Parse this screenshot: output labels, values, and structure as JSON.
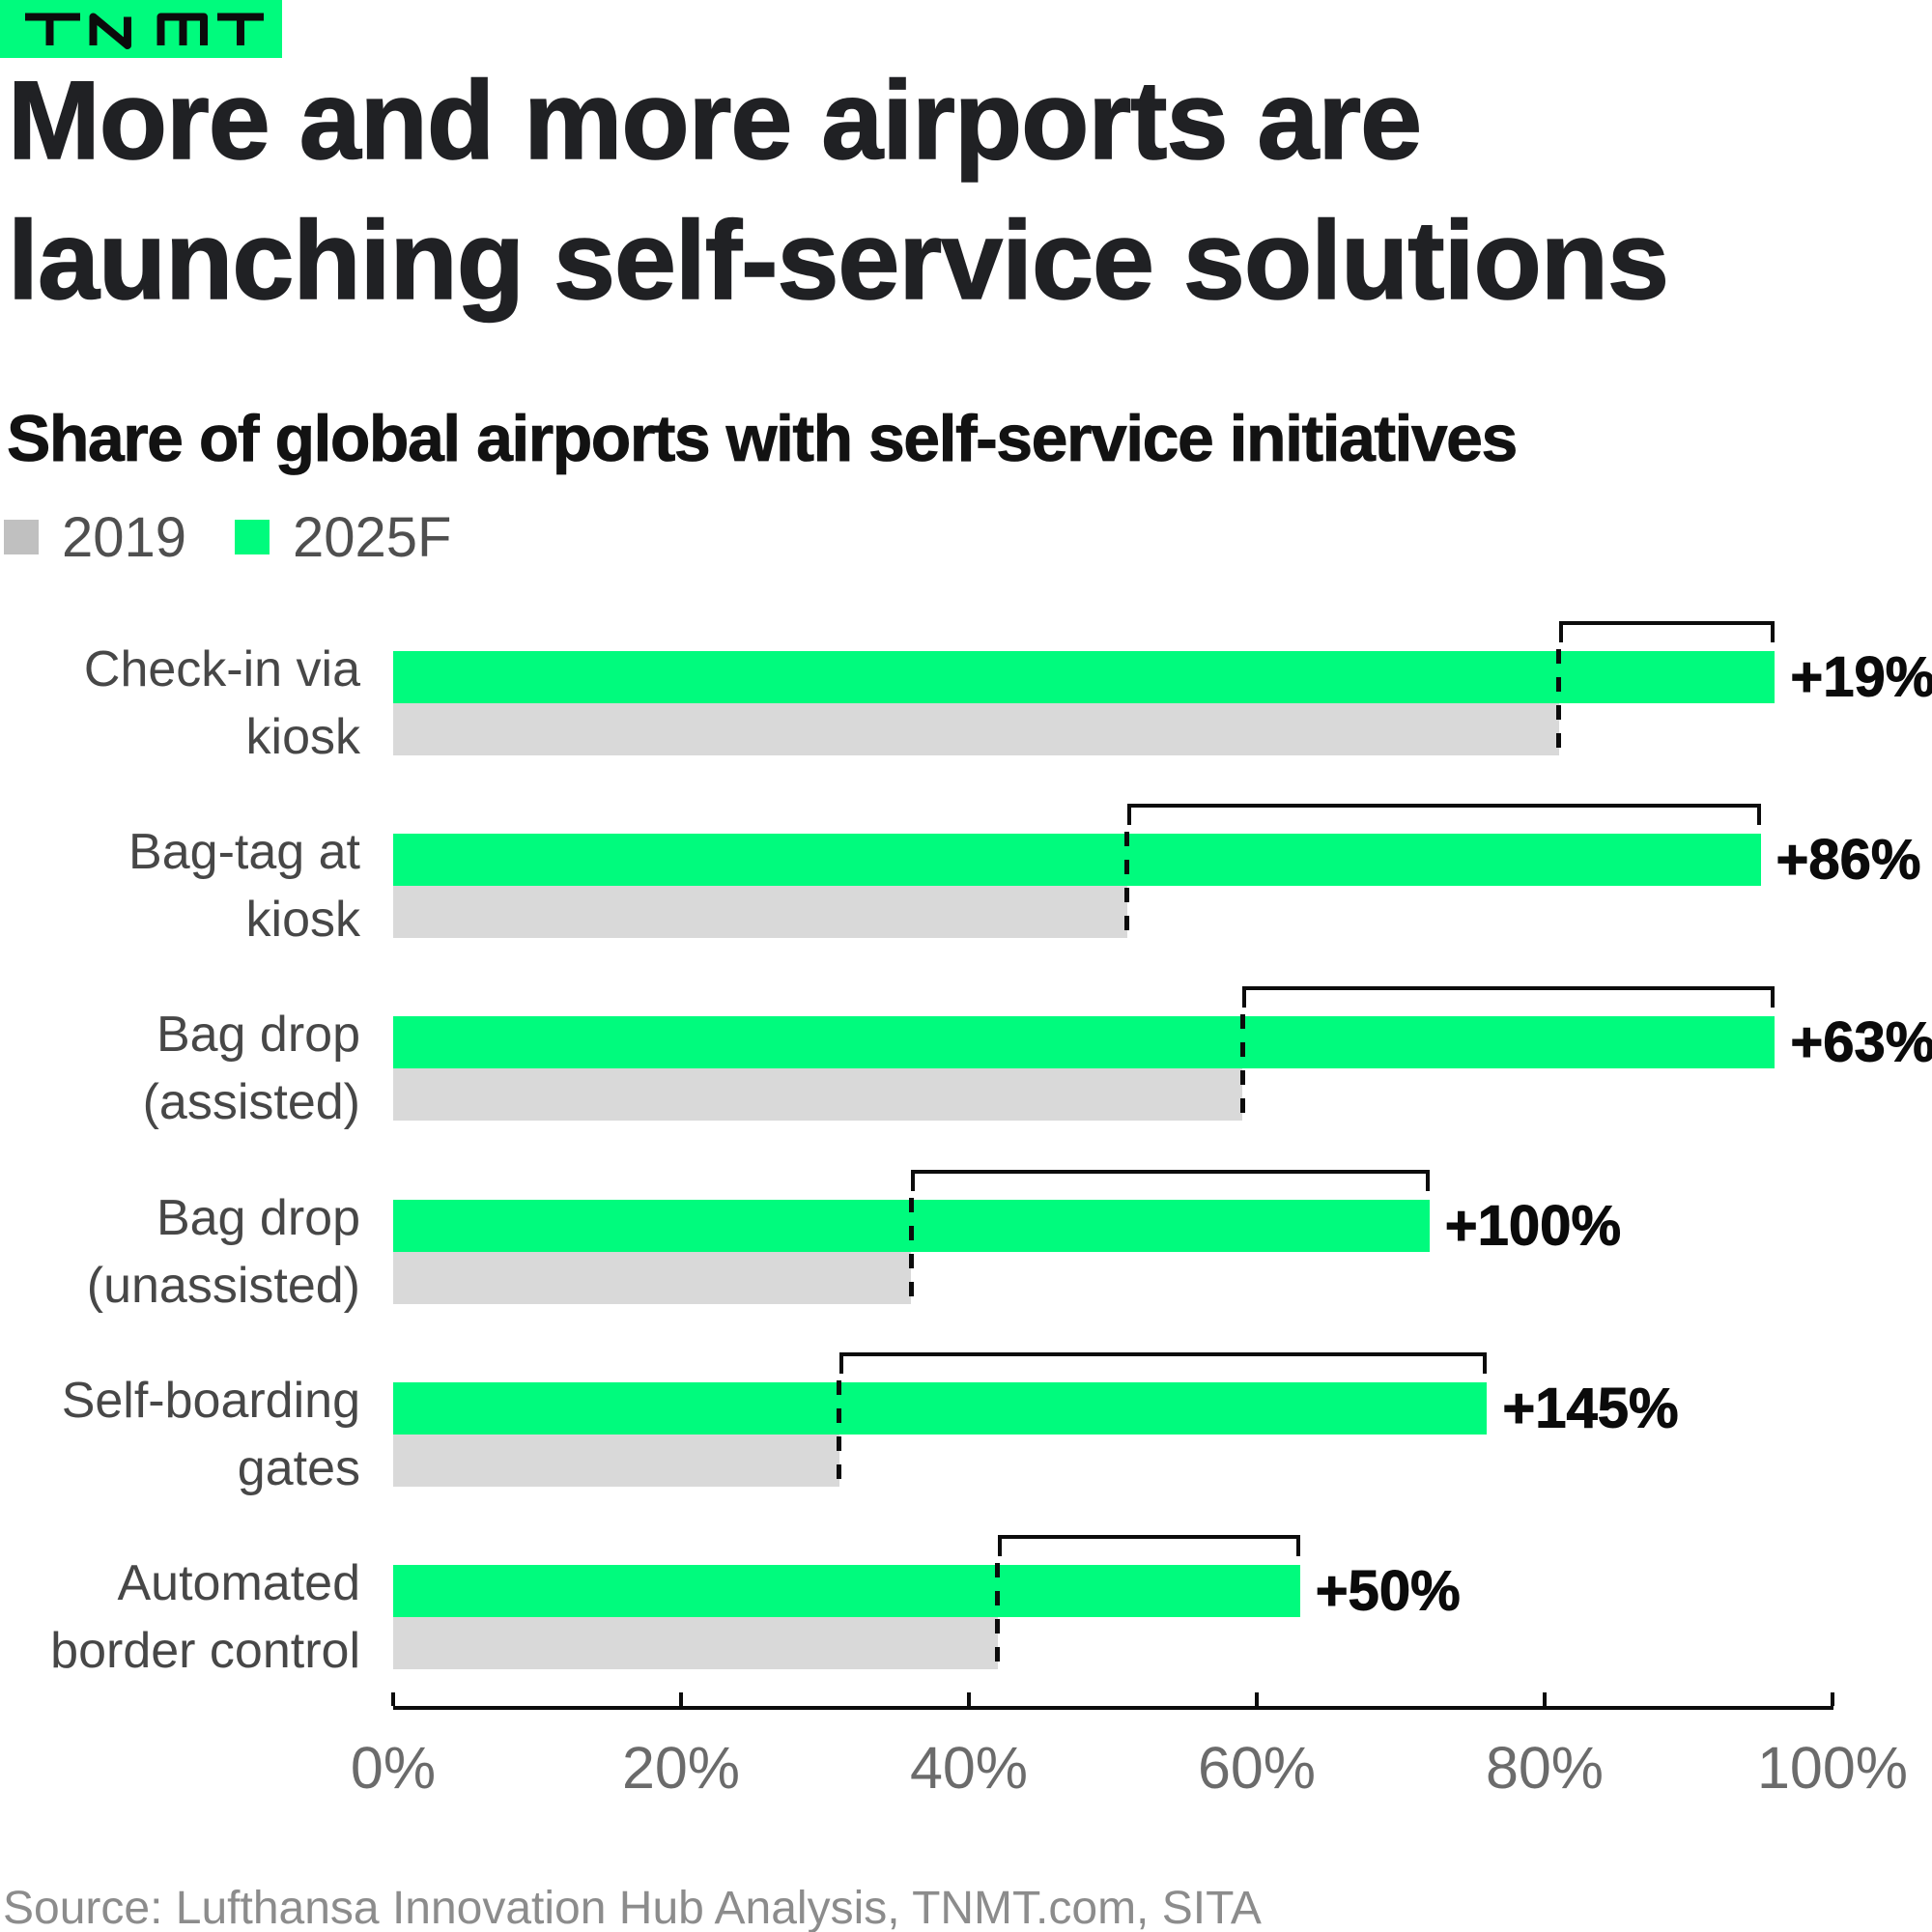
{
  "brand": {
    "logo_text": "TNMT",
    "logo_bg": "#00FB7D"
  },
  "title": {
    "lines": [
      "More and more airports are",
      "launching self-service solutions"
    ]
  },
  "subtitle": "Share of global airports with self-service initiatives",
  "legend": [
    {
      "label": "2019",
      "color": "#C0C0C0"
    },
    {
      "label": "2025F",
      "color": "#00FB7D"
    }
  ],
  "source": "Source: Lufthansa Innovation Hub Analysis, TNMT.com, SITA",
  "chart_data": {
    "type": "bar",
    "orientation": "horizontal",
    "title": "Share of global airports with self-service initiatives",
    "categories": [
      [
        "Check-in via",
        "kiosk"
      ],
      [
        "Bag-tag at",
        "kiosk"
      ],
      [
        "Bag drop",
        "(assisted)"
      ],
      [
        "Bag drop",
        "(unassisted)"
      ],
      [
        "Self-boarding",
        "gates"
      ],
      [
        "Automated",
        "border control"
      ]
    ],
    "series": [
      {
        "name": "2019",
        "color": "#D9D9D9",
        "values": [
          81,
          51,
          59,
          36,
          31,
          42
        ]
      },
      {
        "name": "2025F",
        "color": "#00FB7D",
        "values": [
          96,
          95,
          96,
          72,
          76,
          63
        ]
      }
    ],
    "change_labels": [
      "+19%",
      "+86%",
      "+63%",
      "+100%",
      "+145%",
      "+50%"
    ],
    "xlim": [
      0,
      100
    ],
    "xticks": {
      "values": [
        0,
        20,
        40,
        60,
        80,
        100
      ],
      "labels": [
        "0%",
        "20%",
        "40%",
        "60%",
        "80%",
        "100%"
      ]
    },
    "grid": false,
    "legend_position": "top-left"
  }
}
